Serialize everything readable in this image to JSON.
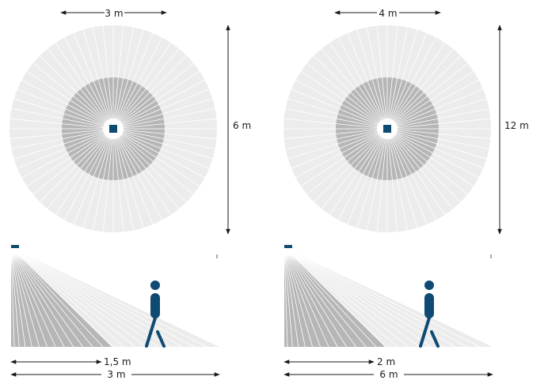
{
  "panels": [
    {
      "top_width_label": "3 m",
      "right_height_label": "6 m",
      "side_inner_label": "1,5 m",
      "side_outer_label": "3 m"
    },
    {
      "top_width_label": "4 m",
      "right_height_label": "12 m",
      "side_inner_label": "2 m",
      "side_outer_label": "6 m"
    }
  ],
  "colors": {
    "outer_zone": "#ececec",
    "inner_zone": "#b6b6b6",
    "sensor": "#0f4a72",
    "person": "#0f4a72",
    "dimension": "#1a1a1a",
    "ray": "#ffffff"
  }
}
